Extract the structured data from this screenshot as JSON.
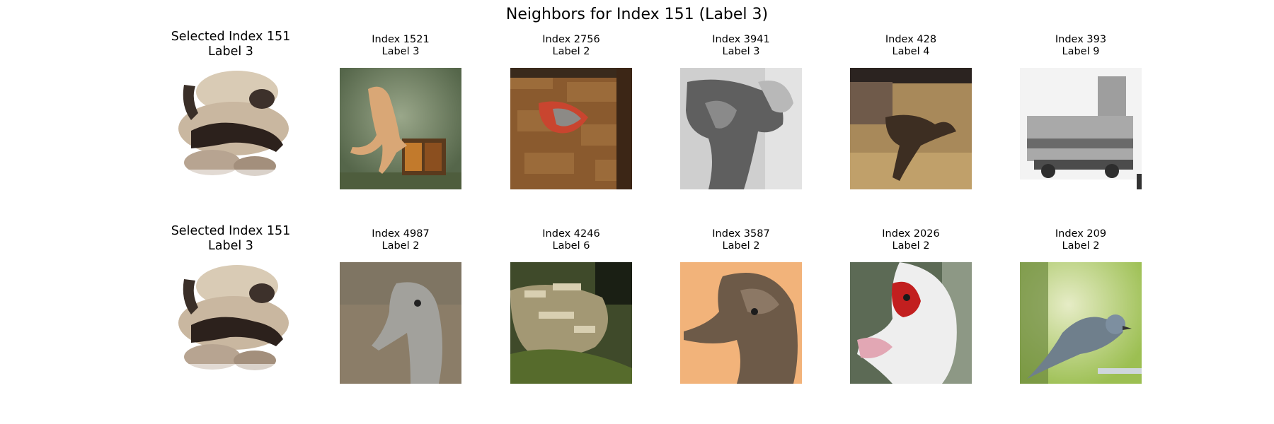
{
  "figure_title": "Neighbors for Index 151 (Label 3)",
  "rows": [
    [
      {
        "line1": "Selected Index 151",
        "line2": "Label 3",
        "selected": true,
        "picture": "cat-on-white"
      },
      {
        "line1": "Index 1521",
        "line2": "Label 3",
        "picture": "cat-standing-on-box"
      },
      {
        "line1": "Index 2756",
        "line2": "Label 2",
        "picture": "bird-on-brick"
      },
      {
        "line1": "Index 3941",
        "line2": "Label 3",
        "picture": "grayscale-cat"
      },
      {
        "line1": "Index 428",
        "line2": "Label 4",
        "picture": "deer-brown"
      },
      {
        "line1": "Index 393",
        "line2": "Label 9",
        "picture": "grayscale-truck"
      }
    ],
    [
      {
        "line1": "Selected Index 151",
        "line2": "Label 3",
        "selected": true,
        "picture": "cat-on-white"
      },
      {
        "line1": "Index 4987",
        "line2": "Label 2",
        "picture": "ostrich-head"
      },
      {
        "line1": "Index 4246",
        "line2": "Label 6",
        "picture": "frog-green"
      },
      {
        "line1": "Index 3587",
        "line2": "Label 2",
        "picture": "emu-head"
      },
      {
        "line1": "Index 2026",
        "line2": "Label 2",
        "picture": "muscovy-duck"
      },
      {
        "line1": "Index 209",
        "line2": "Label 2",
        "picture": "small-bird"
      }
    ]
  ]
}
